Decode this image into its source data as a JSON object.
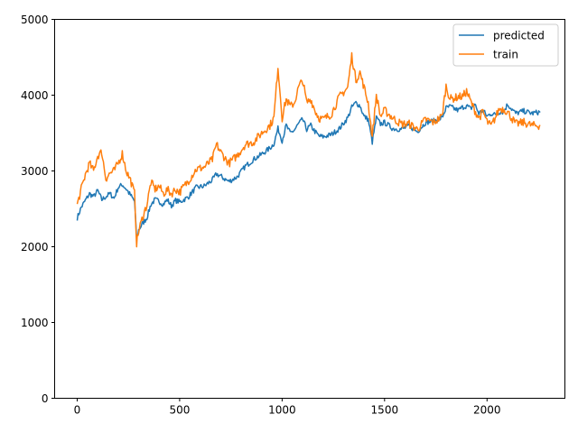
{
  "chart_data": {
    "type": "line",
    "title": "",
    "xlabel": "",
    "ylabel": "",
    "xlim": [
      -110,
      2380
    ],
    "ylim": [
      0,
      5000
    ],
    "xticks": [
      0,
      500,
      1000,
      1500,
      2000
    ],
    "yticks": [
      0,
      1000,
      2000,
      3000,
      4000,
      5000
    ],
    "grid": false,
    "legend_position": "top-right",
    "series": [
      {
        "name": "predicted",
        "color": "#1f77b4",
        "x": [
          0,
          20,
          40,
          60,
          80,
          100,
          120,
          140,
          160,
          180,
          200,
          220,
          240,
          260,
          280,
          290,
          300,
          320,
          340,
          360,
          380,
          400,
          420,
          440,
          460,
          480,
          500,
          540,
          580,
          620,
          660,
          680,
          700,
          740,
          780,
          820,
          860,
          900,
          940,
          960,
          980,
          1000,
          1020,
          1040,
          1060,
          1080,
          1100,
          1120,
          1140,
          1160,
          1180,
          1200,
          1240,
          1280,
          1320,
          1340,
          1360,
          1380,
          1400,
          1420,
          1440,
          1460,
          1480,
          1500,
          1540,
          1580,
          1620,
          1660,
          1700,
          1740,
          1780,
          1800,
          1820,
          1840,
          1860,
          1880,
          1900,
          1920,
          1940,
          1960,
          1980,
          2000,
          2020,
          2040,
          2060,
          2080,
          2100,
          2140,
          2180,
          2220,
          2260
        ],
        "y": [
          2380,
          2520,
          2610,
          2700,
          2660,
          2740,
          2620,
          2660,
          2700,
          2640,
          2780,
          2820,
          2760,
          2680,
          2600,
          2100,
          2220,
          2310,
          2380,
          2560,
          2620,
          2600,
          2560,
          2620,
          2540,
          2610,
          2590,
          2650,
          2780,
          2800,
          2880,
          2960,
          2930,
          2860,
          2920,
          3060,
          3150,
          3220,
          3300,
          3360,
          3560,
          3400,
          3600,
          3500,
          3540,
          3620,
          3680,
          3550,
          3600,
          3520,
          3460,
          3450,
          3480,
          3560,
          3700,
          3840,
          3900,
          3860,
          3720,
          3680,
          3380,
          3700,
          3620,
          3640,
          3560,
          3550,
          3590,
          3520,
          3640,
          3660,
          3700,
          3830,
          3850,
          3820,
          3800,
          3840,
          3860,
          3820,
          3880,
          3760,
          3800,
          3720,
          3760,
          3740,
          3780,
          3780,
          3880,
          3760,
          3790,
          3760,
          3780
        ]
      },
      {
        "name": "train",
        "color": "#ff7f0e",
        "x": [
          0,
          20,
          40,
          60,
          80,
          100,
          120,
          140,
          160,
          180,
          200,
          220,
          240,
          260,
          280,
          290,
          300,
          320,
          340,
          360,
          380,
          400,
          420,
          440,
          460,
          480,
          500,
          540,
          580,
          620,
          660,
          680,
          700,
          740,
          780,
          820,
          860,
          900,
          940,
          960,
          980,
          1000,
          1020,
          1040,
          1060,
          1080,
          1100,
          1120,
          1140,
          1160,
          1180,
          1200,
          1240,
          1280,
          1320,
          1340,
          1360,
          1380,
          1400,
          1420,
          1440,
          1460,
          1480,
          1500,
          1540,
          1580,
          1620,
          1660,
          1700,
          1740,
          1780,
          1800,
          1820,
          1840,
          1860,
          1880,
          1900,
          1920,
          1940,
          1960,
          1980,
          2000,
          2020,
          2040,
          2060,
          2080,
          2100,
          2140,
          2180,
          2220,
          2260
        ],
        "y": [
          2550,
          2760,
          2950,
          3100,
          3000,
          3200,
          3250,
          2900,
          2970,
          3000,
          3100,
          3230,
          3000,
          2880,
          2700,
          2050,
          2200,
          2400,
          2550,
          2850,
          2760,
          2800,
          2700,
          2750,
          2700,
          2760,
          2720,
          2860,
          3020,
          3050,
          3150,
          3350,
          3250,
          3100,
          3200,
          3350,
          3380,
          3500,
          3600,
          3700,
          4380,
          3700,
          3950,
          3850,
          3900,
          4100,
          4200,
          3900,
          3950,
          3800,
          3700,
          3680,
          3750,
          3980,
          4100,
          4520,
          4200,
          4300,
          4100,
          3900,
          3450,
          4000,
          3720,
          3800,
          3700,
          3620,
          3620,
          3550,
          3680,
          3640,
          3720,
          4120,
          3950,
          3960,
          3980,
          3980,
          4050,
          3920,
          3800,
          3700,
          3780,
          3650,
          3590,
          3700,
          3820,
          3820,
          3780,
          3620,
          3640,
          3600,
          3600
        ]
      }
    ]
  }
}
